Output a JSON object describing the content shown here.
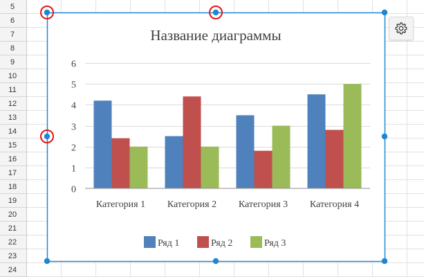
{
  "sheet": {
    "row_numbers": [
      "5",
      "6",
      "7",
      "8",
      "9",
      "10",
      "11",
      "12",
      "13",
      "14",
      "15",
      "16",
      "17",
      "18",
      "19",
      "20",
      "21",
      "22",
      "23",
      "24"
    ]
  },
  "colors": {
    "selection": "#1f86d1",
    "handle_highlight": "#e01515",
    "grid": "#e1e1e1",
    "header_bg": "#f4f4f4"
  },
  "toolbar": {
    "settings_icon": "gear-icon"
  },
  "chart_data": {
    "type": "bar",
    "title": "Название диаграммы",
    "categories": [
      "Категория 1",
      "Категория 2",
      "Категория 3",
      "Категория 4"
    ],
    "series": [
      {
        "name": "Ряд 1",
        "color": "#4f81bd",
        "values": [
          4.2,
          2.5,
          3.5,
          4.5
        ]
      },
      {
        "name": "Ряд 2",
        "color": "#c0504d",
        "values": [
          2.4,
          4.4,
          1.8,
          2.8
        ]
      },
      {
        "name": "Ряд 3",
        "color": "#9bbb59",
        "values": [
          2.0,
          2.0,
          3.0,
          5.0
        ]
      }
    ],
    "yticks": [
      "0",
      "1",
      "2",
      "3",
      "4",
      "5",
      "6"
    ],
    "ylim": [
      0,
      6
    ],
    "grid": true,
    "legend": "bottom"
  }
}
